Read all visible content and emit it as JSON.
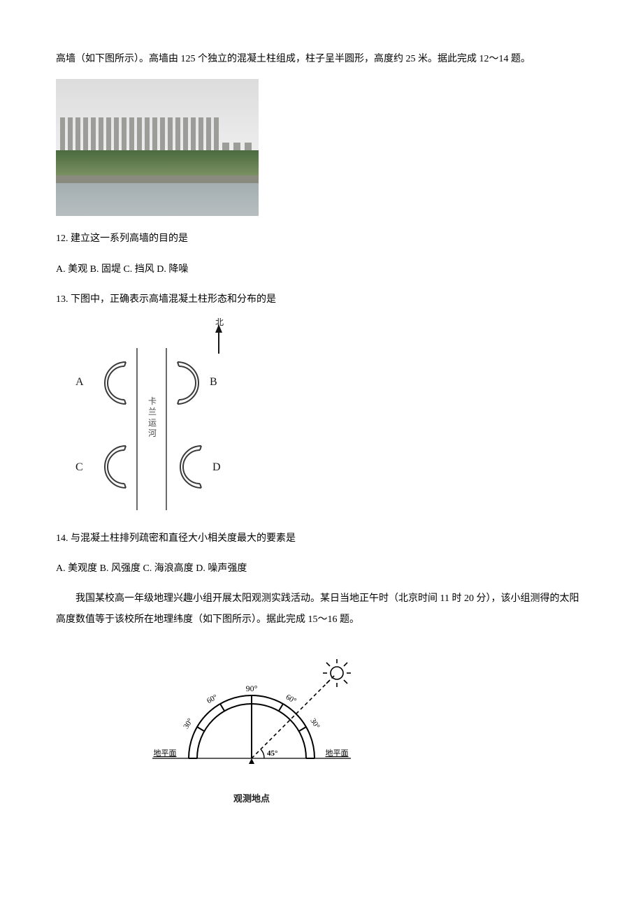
{
  "intro_text": "高墙（如下图所示）。高墙由 125 个独立的混凝土柱组成，柱子呈半圆形，高度约 25 米。据此完成 12～14 题。",
  "photo": {
    "pillar_count_main": 21,
    "pillar_count_short": 3,
    "colors": {
      "sky_top": "#dcdcdc",
      "sky_bottom": "#eeeeee",
      "green_top": "#4b6b3e",
      "green_bottom": "#7a8f62",
      "bank": "#8a8a7e",
      "water_top": "#a4aeb0",
      "water_bottom": "#b6bec0",
      "pillar": "#9c9c98"
    }
  },
  "q12": {
    "stem": "12.  建立这一系列高墙的目的是",
    "opts": "A. 美观 B. 固堤 C. 挡风 D. 降噪"
  },
  "q13": {
    "stem": "13. 下图中，正确表示高墙混凝土柱形态和分布的是",
    "diagram": {
      "labels": {
        "A": "A",
        "B": "B",
        "C": "C",
        "D": "D"
      },
      "channel_chars": [
        "卡",
        "兰",
        "运",
        "河"
      ],
      "north_char": "北",
      "stroke_color": "#3a3a3a",
      "stroke_width": 2
    }
  },
  "q14": {
    "stem": "14. 与混凝土柱排列疏密和直径大小相关度最大的要素是",
    "opts": "A. 美观度 B.  风强度 C. 海浪高度 D. 噪声强度"
  },
  "passage2": "我国某校高一年级地理兴趣小组开展太阳观测实践活动。某日当地正午时（北京时间 11 时 20 分），该小组测得的太阳高度数值等于该校所在地理纬度（如下图所示）。据此完成 15～16 题。",
  "sun_diagram": {
    "top_label": "90°",
    "left_60": "60°",
    "right_60": "60°",
    "left_30": "30°",
    "right_30": "30°",
    "center_angle": "45°",
    "horizon_left": "地平面",
    "horizon_right": "地平面",
    "caption": "观测地点",
    "stroke_color": "#000000"
  }
}
